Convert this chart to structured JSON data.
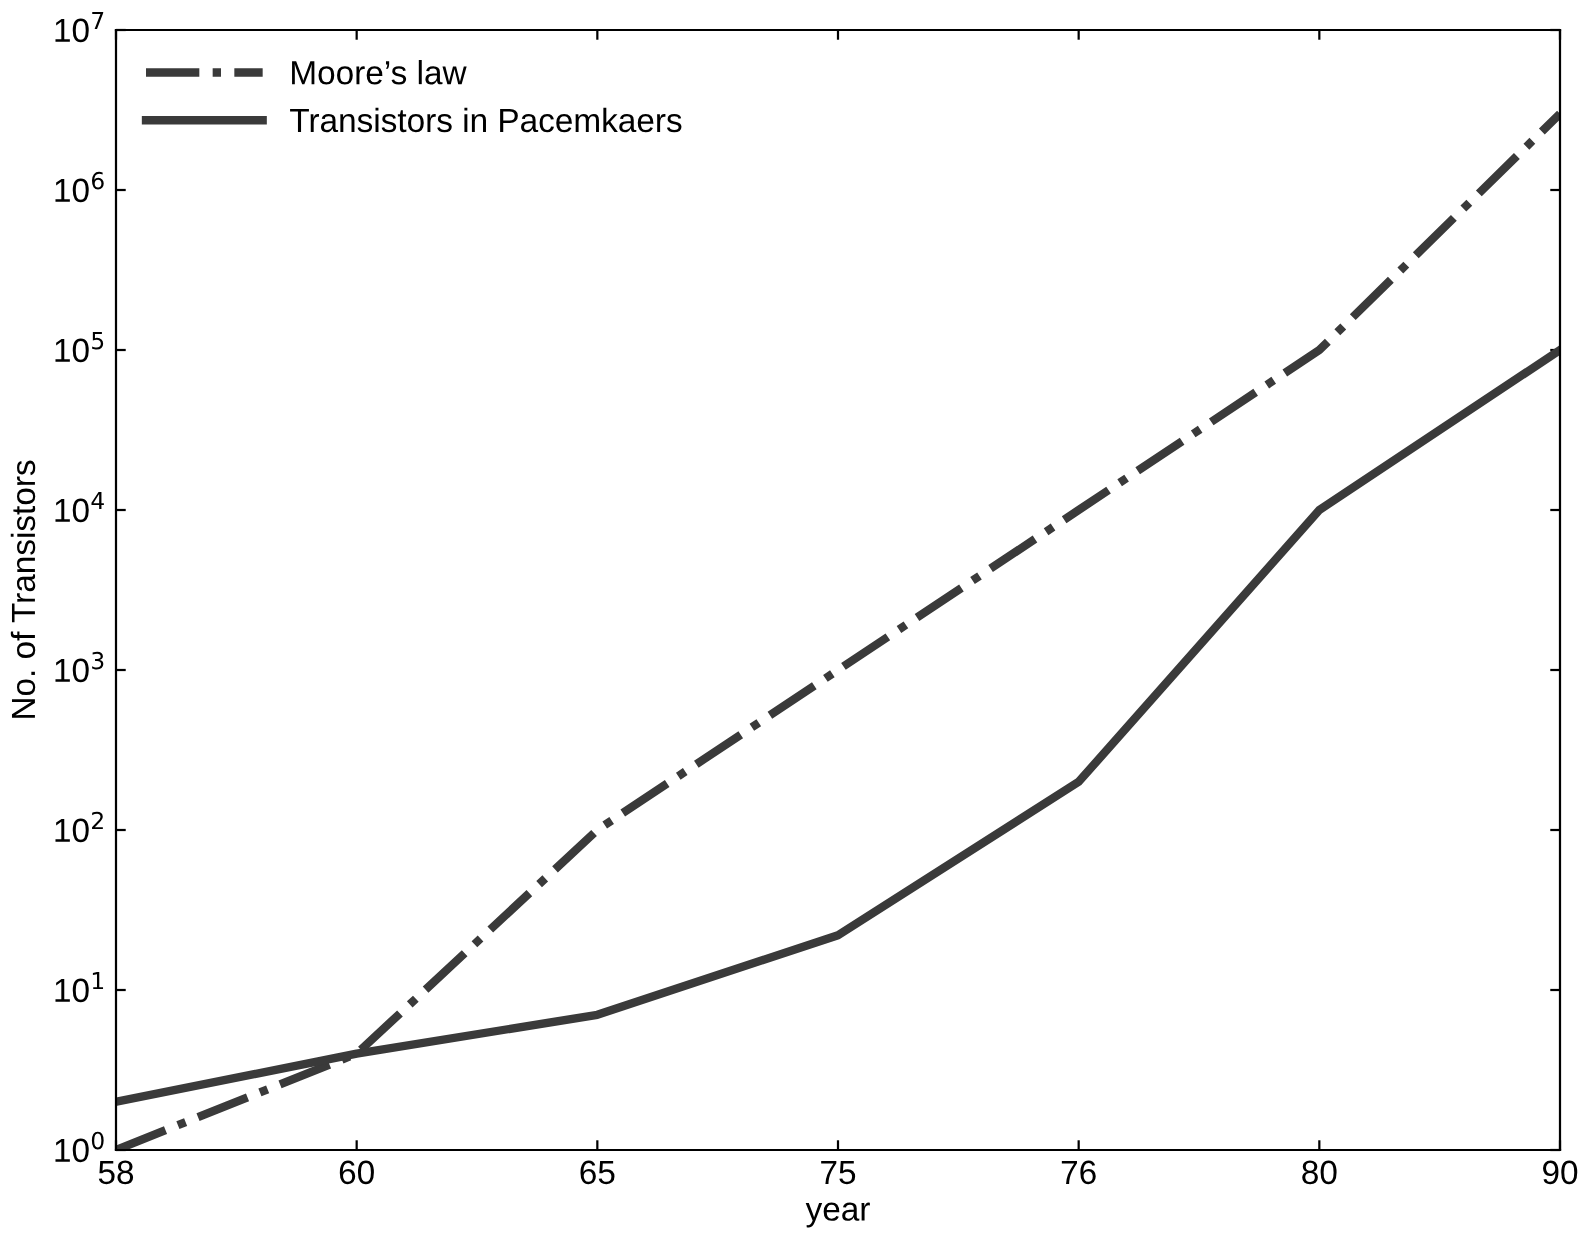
{
  "chart_data": {
    "type": "line",
    "xlabel": "year",
    "ylabel": "No. of Transistors",
    "categories": [
      "58",
      "60",
      "65",
      "75",
      "76",
      "80",
      "90"
    ],
    "series": [
      {
        "name": "Moore’s law",
        "color": "#3a3a3a",
        "line_style": "dashdot",
        "values": [
          1,
          4,
          100,
          1000,
          10000,
          100000,
          3000000
        ]
      },
      {
        "name": "Transistors in Pacemkaers",
        "color": "#3a3a3a",
        "line_style": "solid",
        "values": [
          2,
          4,
          7,
          22,
          200,
          10000,
          100000
        ]
      }
    ],
    "log": "y",
    "ylim": [
      1,
      10000000
    ],
    "yticks": [
      {
        "value": 1,
        "label": "10$^{0}$"
      },
      {
        "value": 10,
        "label": "10$^{1}$"
      },
      {
        "value": 100,
        "label": "10$^{2}$"
      },
      {
        "value": 1000,
        "label": "10$^{3}$"
      },
      {
        "value": 10000,
        "label": "10$^{4}$"
      },
      {
        "value": 100000,
        "label": "10$^{5}$"
      },
      {
        "value": 1000000,
        "label": "10$^{6}$"
      },
      {
        "value": 10000000,
        "label": "10$^{7}$"
      }
    ],
    "grid": false,
    "legend": "top left"
  }
}
